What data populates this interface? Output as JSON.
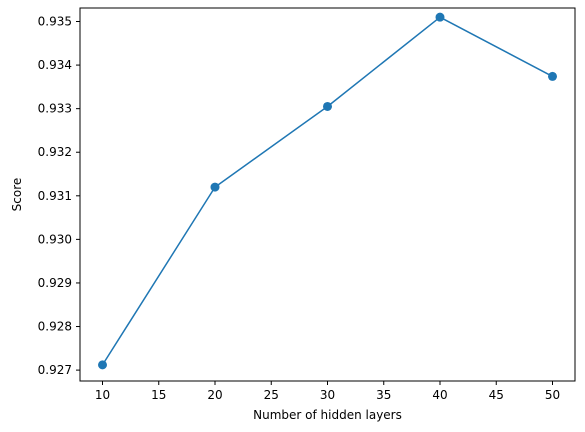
{
  "chart_data": {
    "type": "line",
    "title": "",
    "xlabel": "Number of hidden layers",
    "ylabel": "Score",
    "xlim": [
      8,
      52
    ],
    "ylim": [
      0.92675,
      0.93531
    ],
    "x_ticks": [
      10,
      15,
      20,
      25,
      30,
      35,
      40,
      45,
      50
    ],
    "x_tick_labels": [
      "10",
      "15",
      "20",
      "25",
      "30",
      "35",
      "40",
      "45",
      "50"
    ],
    "y_ticks": [
      0.927,
      0.928,
      0.929,
      0.93,
      0.931,
      0.932,
      0.933,
      0.934,
      0.935
    ],
    "y_tick_labels": [
      "0.927",
      "0.928",
      "0.929",
      "0.930",
      "0.931",
      "0.932",
      "0.933",
      "0.934",
      "0.935"
    ],
    "grid": false,
    "legend": "none",
    "series": [
      {
        "color": "#1f77b4",
        "marker": "circle",
        "x": [
          10,
          20,
          30,
          40,
          50
        ],
        "y": [
          0.92712,
          0.9312,
          0.93305,
          0.9351,
          0.93374
        ]
      }
    ]
  }
}
